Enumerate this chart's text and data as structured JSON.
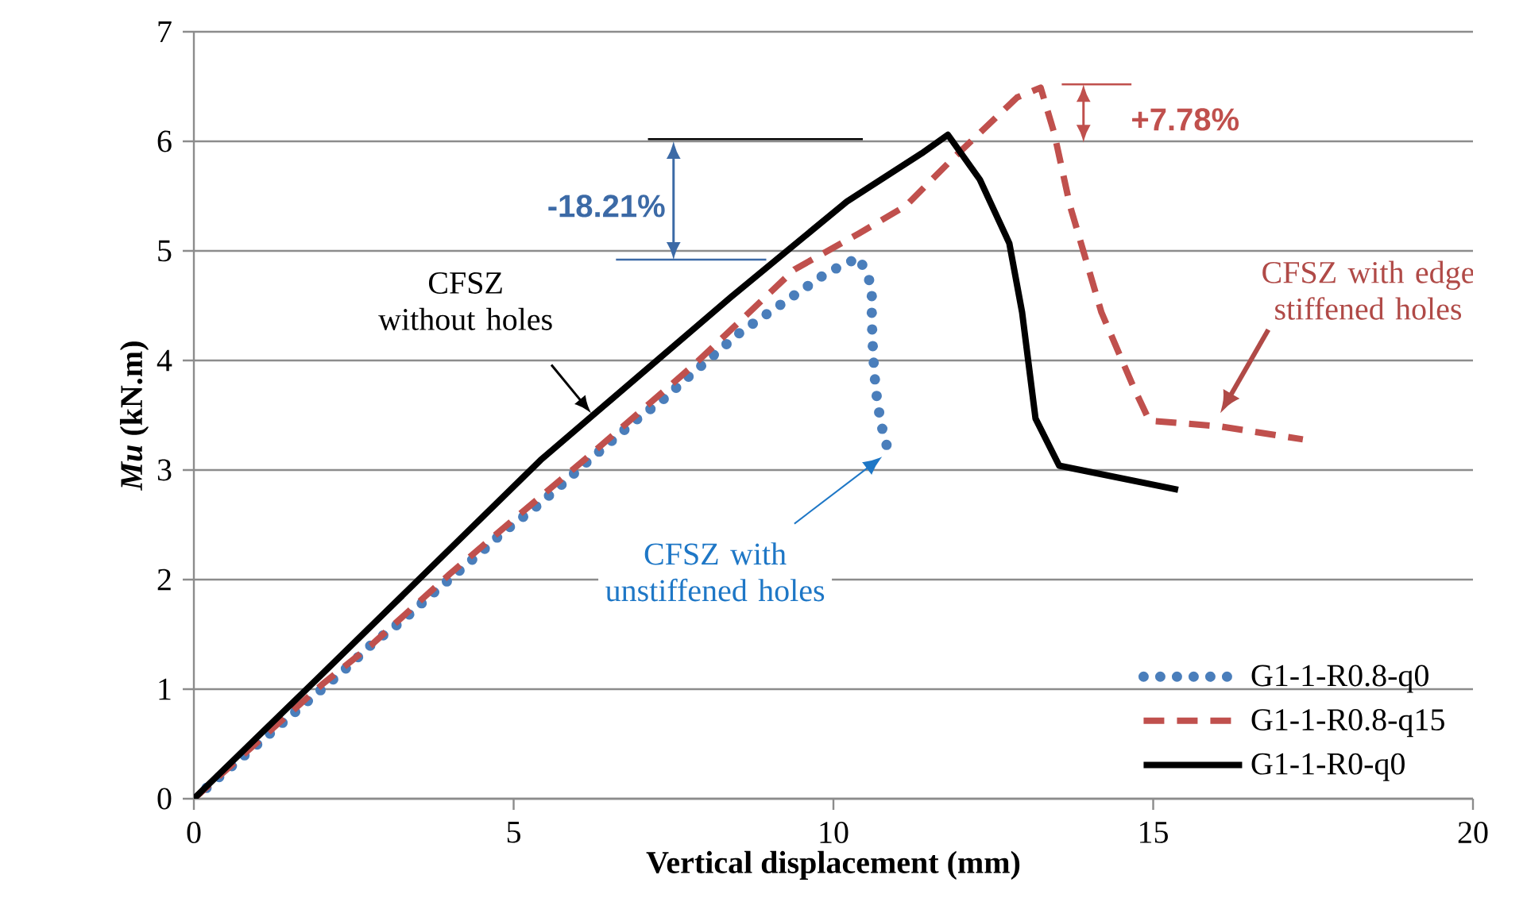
{
  "chart_data": {
    "type": "line",
    "xlabel": "Vertical displacement (mm)",
    "ylabel": "*Mu* (kN.m)",
    "xlim": [
      0,
      20
    ],
    "xticks": [
      0,
      5,
      10,
      15,
      20
    ],
    "ylim": [
      0,
      7
    ],
    "yticks": [
      0,
      1,
      2,
      3,
      4,
      5,
      6,
      7
    ],
    "grid": "y",
    "legend": "bottom right",
    "series": [
      {
        "name": "G1-1-R0.8-q0",
        "color": "#4a7ebb",
        "line_style": "dotted",
        "x": [
          0,
          0.4,
          0.8,
          1.2,
          1.6,
          2.0,
          2.4,
          2.8,
          3.25,
          3.65,
          4.05,
          4.45,
          4.85,
          5.3,
          5.7,
          6.1,
          6.5,
          6.9,
          7.35,
          7.75,
          8.15,
          8.55,
          9.0,
          9.45,
          9.9,
          10.4,
          10.6,
          10.6,
          10.62,
          10.66,
          10.74,
          10.88
        ],
        "values": [
          0,
          0.2,
          0.4,
          0.6,
          0.8,
          1.0,
          1.2,
          1.42,
          1.62,
          1.83,
          2.03,
          2.23,
          2.44,
          2.64,
          2.84,
          3.05,
          3.25,
          3.45,
          3.65,
          3.86,
          4.06,
          4.26,
          4.44,
          4.62,
          4.8,
          4.94,
          4.68,
          4.37,
          4.06,
          3.74,
          3.43,
          3.12
        ]
      },
      {
        "name": "G1-1-R0.8-q15",
        "color": "#c0504d",
        "line_style": "dashed",
        "x": [
          0,
          1,
          2,
          2.77,
          4,
          5,
          6.16,
          7.82,
          9.39,
          10.4,
          11.13,
          11.88,
          12.87,
          13.24,
          13.45,
          13.7,
          14.19,
          14.69,
          14.94,
          16.02,
          17.34
        ],
        "values": [
          0,
          0.52,
          1.04,
          1.4,
          2.05,
          2.55,
          3.12,
          3.96,
          4.83,
          5.16,
          5.41,
          5.85,
          6.4,
          6.49,
          6.08,
          5.41,
          4.44,
          3.76,
          3.45,
          3.4,
          3.28
        ]
      },
      {
        "name": "G1-1-R0-q0",
        "color": "#000000",
        "line_style": "solid",
        "x": [
          0,
          1.94,
          5.42,
          8.4,
          10.21,
          11.38,
          11.79,
          12.29,
          12.75,
          12.95,
          13.16,
          13.53,
          15.39
        ],
        "values": [
          0,
          1.1,
          3.09,
          4.58,
          5.45,
          5.89,
          6.06,
          5.65,
          5.07,
          4.44,
          3.47,
          3.04,
          2.82
        ]
      }
    ],
    "annotations": [
      "-18.21%",
      "+7.78%",
      "CFSZ without holes",
      "CFSZ with unstiffened holes",
      "CFSZ with edge stiffened holes"
    ]
  }
}
